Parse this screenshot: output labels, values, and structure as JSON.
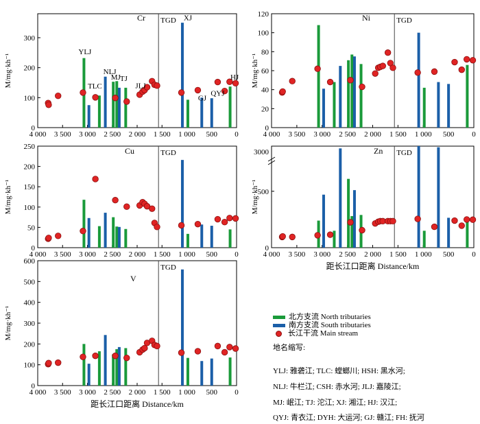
{
  "colors": {
    "north": "#1a9a3a",
    "south": "#1b5fa8",
    "main_fill": "#e02424",
    "main_stroke": "#8a0f0f",
    "axis": "#000000"
  },
  "chart_data": [
    {
      "type": "bar",
      "panel": "Cr",
      "title": "Cr",
      "ylabel": "M/mg·kh⁻¹",
      "xlabel": "",
      "xlim": [
        4000,
        0
      ],
      "ylim": [
        0,
        380
      ],
      "yticks": [
        0,
        100,
        200,
        300
      ],
      "xticks": [
        4000,
        3500,
        3000,
        2500,
        2000,
        1500,
        1000,
        500,
        0
      ],
      "xtick_labels": [
        "4 000",
        "3 500",
        "3 000",
        "2 500",
        "2 000",
        "1 500",
        "1 000",
        "500",
        "0"
      ],
      "tgd_x": 1570,
      "tgd_label": "TGD",
      "north": [
        {
          "x": 3070,
          "y": 232
        },
        {
          "x": 2760,
          "y": 107
        },
        {
          "x": 2480,
          "y": 153
        },
        {
          "x": 2410,
          "y": 155
        },
        {
          "x": 2230,
          "y": 133
        },
        {
          "x": 980,
          "y": 93
        },
        {
          "x": 130,
          "y": 137
        }
      ],
      "south": [
        {
          "x": 2970,
          "y": 75
        },
        {
          "x": 2640,
          "y": 170
        },
        {
          "x": 2360,
          "y": 133
        },
        {
          "x": 1090,
          "y": 350
        },
        {
          "x": 700,
          "y": 100
        },
        {
          "x": 500,
          "y": 98
        }
      ],
      "main": [
        {
          "x": 3790,
          "y": 82
        },
        {
          "x": 3780,
          "y": 76
        },
        {
          "x": 3590,
          "y": 106
        },
        {
          "x": 3090,
          "y": 117
        },
        {
          "x": 2840,
          "y": 101
        },
        {
          "x": 2440,
          "y": 99
        },
        {
          "x": 2210,
          "y": 87
        },
        {
          "x": 1950,
          "y": 110
        },
        {
          "x": 1890,
          "y": 120
        },
        {
          "x": 1850,
          "y": 125
        },
        {
          "x": 1800,
          "y": 135
        },
        {
          "x": 1700,
          "y": 155
        },
        {
          "x": 1650,
          "y": 143
        },
        {
          "x": 1600,
          "y": 140
        },
        {
          "x": 1110,
          "y": 117
        },
        {
          "x": 780,
          "y": 125
        },
        {
          "x": 380,
          "y": 152
        },
        {
          "x": 240,
          "y": 122
        },
        {
          "x": 140,
          "y": 153
        },
        {
          "x": 20,
          "y": 148
        }
      ],
      "annotations": [
        {
          "text": "YLJ",
          "x": 3050,
          "y": 245
        },
        {
          "text": "TLC",
          "x": 2850,
          "y": 130
        },
        {
          "text": "NLJ",
          "x": 2550,
          "y": 178
        },
        {
          "text": "MJ",
          "x": 2430,
          "y": 160
        },
        {
          "text": "TJ",
          "x": 2270,
          "y": 156
        },
        {
          "text": "JLJ",
          "x": 1930,
          "y": 132
        },
        {
          "text": "XJ",
          "x": 980,
          "y": 358
        },
        {
          "text": "GJ",
          "x": 690,
          "y": 90
        },
        {
          "text": "QYJ",
          "x": 380,
          "y": 106
        },
        {
          "text": "HJ",
          "x": 40,
          "y": 160
        }
      ]
    },
    {
      "type": "bar",
      "panel": "Ni",
      "title": "Ni",
      "ylabel": "M/mg·kh⁻¹",
      "xlabel": "",
      "xlim": [
        4000,
        0
      ],
      "ylim": [
        0,
        120
      ],
      "yticks": [
        0,
        20,
        40,
        60,
        80,
        100,
        120
      ],
      "xticks": [
        4000,
        3500,
        3000,
        2500,
        2000,
        1500,
        1000,
        500,
        0
      ],
      "xtick_labels": [
        "4 000",
        "3 500",
        "3 000",
        "2 500",
        "2 000",
        "1 500",
        "1 000",
        "500",
        "0"
      ],
      "tgd_x": 1570,
      "tgd_label": "TGD",
      "north": [
        {
          "x": 3070,
          "y": 108
        },
        {
          "x": 2760,
          "y": 48
        },
        {
          "x": 2480,
          "y": 71
        },
        {
          "x": 2410,
          "y": 77
        },
        {
          "x": 2230,
          "y": 67
        },
        {
          "x": 980,
          "y": 42
        },
        {
          "x": 130,
          "y": 66
        }
      ],
      "south": [
        {
          "x": 2970,
          "y": 41
        },
        {
          "x": 2640,
          "y": 65
        },
        {
          "x": 2360,
          "y": 75
        },
        {
          "x": 1090,
          "y": 100
        },
        {
          "x": 700,
          "y": 48
        },
        {
          "x": 500,
          "y": 46
        }
      ],
      "main": [
        {
          "x": 3790,
          "y": 37
        },
        {
          "x": 3780,
          "y": 38
        },
        {
          "x": 3590,
          "y": 49
        },
        {
          "x": 3090,
          "y": 62
        },
        {
          "x": 2840,
          "y": 48
        },
        {
          "x": 2440,
          "y": 50
        },
        {
          "x": 2210,
          "y": 43
        },
        {
          "x": 1950,
          "y": 57
        },
        {
          "x": 1890,
          "y": 63
        },
        {
          "x": 1850,
          "y": 64
        },
        {
          "x": 1800,
          "y": 65
        },
        {
          "x": 1700,
          "y": 79
        },
        {
          "x": 1650,
          "y": 68
        },
        {
          "x": 1600,
          "y": 63
        },
        {
          "x": 1110,
          "y": 58
        },
        {
          "x": 780,
          "y": 59
        },
        {
          "x": 380,
          "y": 69
        },
        {
          "x": 240,
          "y": 61
        },
        {
          "x": 140,
          "y": 72
        },
        {
          "x": 20,
          "y": 71
        }
      ],
      "annotations": []
    },
    {
      "type": "bar",
      "panel": "Cu",
      "title": "Cu",
      "ylabel": "M/mg·kh⁻¹",
      "xlabel": "",
      "xlim": [
        4000,
        0
      ],
      "ylim": [
        0,
        250
      ],
      "yticks": [
        0,
        50,
        100,
        150,
        200,
        250
      ],
      "xticks": [
        4000,
        3500,
        3000,
        2500,
        2000,
        1500,
        1000,
        500,
        0
      ],
      "xtick_labels": [
        "4 000",
        "3 500",
        "3 000",
        "2 500",
        "2 000",
        "1 500",
        "1 000",
        "500",
        "0"
      ],
      "tgd_x": 1570,
      "tgd_label": "TGD",
      "north": [
        {
          "x": 3070,
          "y": 118
        },
        {
          "x": 2760,
          "y": 53
        },
        {
          "x": 2480,
          "y": 75
        },
        {
          "x": 2410,
          "y": 52
        },
        {
          "x": 2230,
          "y": 46
        },
        {
          "x": 980,
          "y": 34
        },
        {
          "x": 130,
          "y": 45
        }
      ],
      "south": [
        {
          "x": 2970,
          "y": 73
        },
        {
          "x": 2640,
          "y": 86
        },
        {
          "x": 2360,
          "y": 51
        },
        {
          "x": 1090,
          "y": 216
        },
        {
          "x": 700,
          "y": 57
        },
        {
          "x": 500,
          "y": 54
        }
      ],
      "main": [
        {
          "x": 3790,
          "y": 22
        },
        {
          "x": 3780,
          "y": 24
        },
        {
          "x": 3590,
          "y": 29
        },
        {
          "x": 3090,
          "y": 41
        },
        {
          "x": 2840,
          "y": 169
        },
        {
          "x": 2440,
          "y": 117
        },
        {
          "x": 2210,
          "y": 101
        },
        {
          "x": 1950,
          "y": 104
        },
        {
          "x": 1890,
          "y": 112
        },
        {
          "x": 1850,
          "y": 108
        },
        {
          "x": 1800,
          "y": 102
        },
        {
          "x": 1700,
          "y": 96
        },
        {
          "x": 1650,
          "y": 61
        },
        {
          "x": 1600,
          "y": 51
        },
        {
          "x": 1110,
          "y": 55
        },
        {
          "x": 780,
          "y": 58
        },
        {
          "x": 380,
          "y": 70
        },
        {
          "x": 240,
          "y": 63
        },
        {
          "x": 140,
          "y": 73
        },
        {
          "x": 20,
          "y": 72
        }
      ],
      "annotations": []
    },
    {
      "type": "bar",
      "panel": "Zn",
      "title": "Zn",
      "ylabel": "M/mg·kh⁻¹",
      "xlabel": "距长江口距离 Distance/km",
      "xlim": [
        4000,
        0
      ],
      "ylim": [
        0,
        900
      ],
      "yticks": [
        0,
        500
      ],
      "ybreak_tick": "3000",
      "xticks": [
        4000,
        3500,
        3000,
        2500,
        2000,
        1500,
        1000,
        500,
        0
      ],
      "xtick_labels": [
        "4 000",
        "3 500",
        "3 000",
        "2 500",
        "2 000",
        "1 500",
        "1 000",
        "500",
        "0"
      ],
      "tgd_x": 1570,
      "tgd_label": "TGD",
      "north": [
        {
          "x": 3070,
          "y": 240
        },
        {
          "x": 2760,
          "y": 150
        },
        {
          "x": 2480,
          "y": 610
        },
        {
          "x": 2410,
          "y": 280
        },
        {
          "x": 2230,
          "y": 290
        },
        {
          "x": 980,
          "y": 150
        },
        {
          "x": 130,
          "y": 260
        }
      ],
      "south": [
        {
          "x": 2970,
          "y": 470
        },
        {
          "x": 2640,
          "y": 880
        },
        {
          "x": 2360,
          "y": 510
        },
        {
          "x": 1090,
          "y": 900
        },
        {
          "x": 700,
          "y": 890
        },
        {
          "x": 500,
          "y": 265
        }
      ],
      "main": [
        {
          "x": 3790,
          "y": 95
        },
        {
          "x": 3780,
          "y": 100
        },
        {
          "x": 3590,
          "y": 95
        },
        {
          "x": 3090,
          "y": 110
        },
        {
          "x": 2840,
          "y": 115
        },
        {
          "x": 2440,
          "y": 225
        },
        {
          "x": 2210,
          "y": 155
        },
        {
          "x": 1950,
          "y": 215
        },
        {
          "x": 1890,
          "y": 230
        },
        {
          "x": 1850,
          "y": 235
        },
        {
          "x": 1800,
          "y": 235
        },
        {
          "x": 1700,
          "y": 235
        },
        {
          "x": 1650,
          "y": 235
        },
        {
          "x": 1600,
          "y": 235
        },
        {
          "x": 1110,
          "y": 255
        },
        {
          "x": 780,
          "y": 185
        },
        {
          "x": 380,
          "y": 240
        },
        {
          "x": 240,
          "y": 195
        },
        {
          "x": 140,
          "y": 250
        },
        {
          "x": 20,
          "y": 248
        }
      ],
      "annotations": []
    },
    {
      "type": "bar",
      "panel": "V",
      "title": "V",
      "ylabel": "M/mg·kh⁻¹",
      "xlabel": "距长江口距离 Distance/km",
      "xlim": [
        4000,
        0
      ],
      "ylim": [
        0,
        600
      ],
      "yticks": [
        0,
        100,
        200,
        300,
        400,
        500,
        600
      ],
      "xticks": [
        4000,
        3500,
        3000,
        2500,
        2000,
        1500,
        1000,
        500,
        0
      ],
      "xtick_labels": [
        "4 000",
        "3 500",
        "3 000",
        "2 500",
        "2 000",
        "1 500",
        "1 000",
        "500",
        "0"
      ],
      "tgd_x": 1570,
      "tgd_label": "TGD",
      "north": [
        {
          "x": 3070,
          "y": 200
        },
        {
          "x": 2760,
          "y": 165
        },
        {
          "x": 2480,
          "y": 150
        },
        {
          "x": 2410,
          "y": 175
        },
        {
          "x": 2230,
          "y": 180
        },
        {
          "x": 980,
          "y": 133
        },
        {
          "x": 130,
          "y": 135
        }
      ],
      "south": [
        {
          "x": 2970,
          "y": 105
        },
        {
          "x": 2640,
          "y": 243
        },
        {
          "x": 2360,
          "y": 185
        },
        {
          "x": 1090,
          "y": 558
        },
        {
          "x": 700,
          "y": 118
        },
        {
          "x": 500,
          "y": 130
        }
      ],
      "main": [
        {
          "x": 3790,
          "y": 103
        },
        {
          "x": 3780,
          "y": 108
        },
        {
          "x": 3590,
          "y": 110
        },
        {
          "x": 3090,
          "y": 138
        },
        {
          "x": 2840,
          "y": 143
        },
        {
          "x": 2440,
          "y": 143
        },
        {
          "x": 2210,
          "y": 133
        },
        {
          "x": 1950,
          "y": 160
        },
        {
          "x": 1890,
          "y": 173
        },
        {
          "x": 1850,
          "y": 180
        },
        {
          "x": 1800,
          "y": 205
        },
        {
          "x": 1700,
          "y": 215
        },
        {
          "x": 1650,
          "y": 195
        },
        {
          "x": 1600,
          "y": 190
        },
        {
          "x": 1110,
          "y": 158
        },
        {
          "x": 780,
          "y": 165
        },
        {
          "x": 380,
          "y": 190
        },
        {
          "x": 240,
          "y": 160
        },
        {
          "x": 140,
          "y": 185
        },
        {
          "x": 20,
          "y": 178
        }
      ],
      "annotations": []
    }
  ],
  "legend": {
    "north": "北方支流 North tributaries",
    "south": "南方支流 South tributaries",
    "main": "长江干流 Main stream"
  },
  "abbreviations": {
    "title": "地名缩写:",
    "lines": [
      "YLJ: 雅砻江; TLC: 螳螂川; HSH: 黑水河;",
      "NLJ: 牛栏江; CSH: 赤水河; JLJ: 嘉陵江;",
      "MJ: 岷江; TJ: 沱江; XJ: 湘江; HJ: 汉江;",
      "QYJ: 青衣江; DYH: 大运河; GJ: 赣江; FH: 抚河"
    ]
  }
}
